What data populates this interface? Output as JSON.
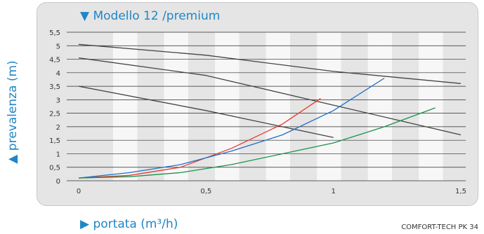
{
  "chart_data": {
    "type": "line",
    "title": "▼ Modello 12 /premium",
    "ylabel": "▲ prevalenza (m)",
    "xlabel": "▶ portata (m³/h)",
    "xlabel_superscript": "3",
    "x_ticks": [
      "0",
      "0,5",
      "1",
      "1,5"
    ],
    "y_ticks": [
      "0",
      "0,5",
      "1",
      "1,5",
      "2",
      "2,5",
      "3",
      "3,5",
      "4",
      "4,5",
      "5",
      "5,5"
    ],
    "xlim": [
      0,
      1.5
    ],
    "ylim": [
      0,
      5.5
    ],
    "grid": true,
    "series": [
      {
        "color": "#444444",
        "x": [
          0,
          0.5,
          1.0,
          1.5
        ],
        "y": [
          5.05,
          4.65,
          4.05,
          3.6
        ]
      },
      {
        "color": "#444444",
        "x": [
          0,
          0.5,
          1.0,
          1.5
        ],
        "y": [
          4.55,
          3.9,
          2.8,
          1.7
        ]
      },
      {
        "color": "#444444",
        "x": [
          0,
          0.5,
          1.0
        ],
        "y": [
          3.5,
          2.6,
          1.6
        ]
      },
      {
        "color": "#e53b2c",
        "x": [
          0,
          0.2,
          0.4,
          0.6,
          0.8,
          0.95
        ],
        "y": [
          0.1,
          0.2,
          0.5,
          1.2,
          2.1,
          3.05
        ]
      },
      {
        "color": "#1f6fc4",
        "x": [
          0,
          0.2,
          0.4,
          0.6,
          0.8,
          1.0,
          1.2
        ],
        "y": [
          0.1,
          0.3,
          0.6,
          1.1,
          1.7,
          2.6,
          3.8
        ]
      },
      {
        "color": "#19944a",
        "x": [
          0,
          0.2,
          0.4,
          0.6,
          0.8,
          1.0,
          1.2,
          1.4
        ],
        "y": [
          0.1,
          0.15,
          0.3,
          0.6,
          1.0,
          1.4,
          2.0,
          2.7
        ]
      }
    ]
  },
  "footer_code": "COMFORT-TECH PK 34"
}
